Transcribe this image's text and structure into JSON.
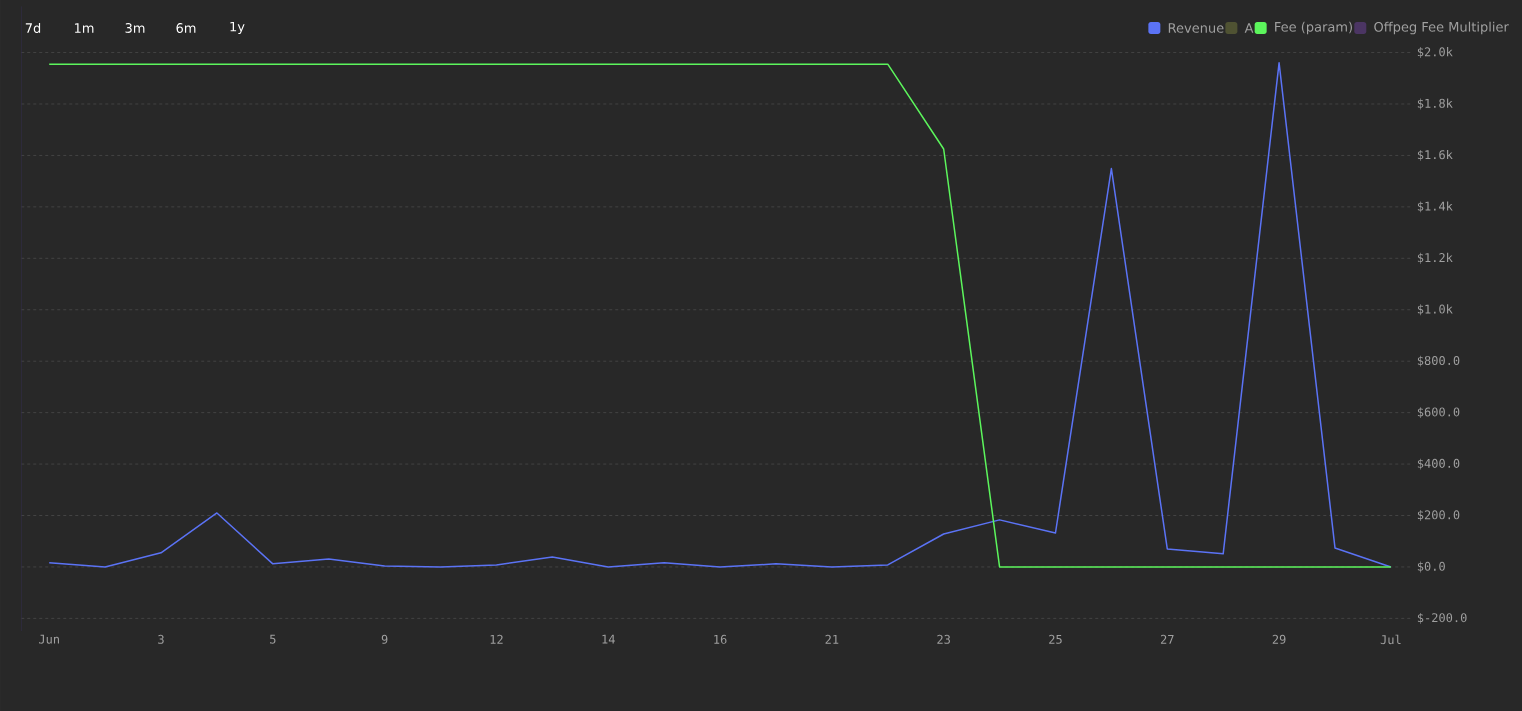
{
  "chart_data": {
    "type": "line",
    "categories": [
      "Jun",
      null,
      "3",
      null,
      "5",
      null,
      "9",
      null,
      "12",
      null,
      "14",
      null,
      "16",
      null,
      "21",
      null,
      "23",
      null,
      "25",
      null,
      "27",
      null,
      "29",
      null,
      "Jul"
    ],
    "series": [
      {
        "name": "Revenue",
        "color": "#5b73f5",
        "values": [
          16,
          0,
          55,
          210,
          12,
          31,
          4,
          0,
          8,
          39,
          0,
          16,
          0,
          12,
          0,
          8,
          128,
          183,
          132,
          1549,
          70,
          51,
          1960,
          74,
          0
        ]
      },
      {
        "name": "A",
        "color": "#4f5232",
        "values": [
          null,
          null,
          null,
          null,
          null,
          null,
          null,
          null,
          null,
          null,
          null,
          null,
          null,
          null,
          null,
          null,
          null,
          null,
          null,
          null,
          null,
          null,
          null,
          null,
          null
        ]
      },
      {
        "name": "Fee (param)",
        "color": "#5cf55c",
        "values": [
          1955,
          1955,
          1955,
          1955,
          1955,
          1955,
          1955,
          1955,
          1955,
          1955,
          1955,
          1955,
          1955,
          1955,
          1955,
          1955,
          1625,
          0,
          0,
          0,
          0,
          0,
          0,
          0,
          0
        ]
      },
      {
        "name": "Offpeg Fee Multiplier",
        "color": "#4b3563",
        "values": [
          null,
          null,
          null,
          null,
          null,
          null,
          null,
          null,
          null,
          null,
          null,
          null,
          null,
          null,
          null,
          null,
          null,
          null,
          null,
          null,
          null,
          null,
          null,
          null,
          null
        ]
      }
    ],
    "ylim": [
      -250,
      2180
    ],
    "yticks": [
      {
        "value": -200,
        "label": "$-200.0"
      },
      {
        "value": 0,
        "label": "$0.0"
      },
      {
        "value": 200,
        "label": "$200.0"
      },
      {
        "value": 400,
        "label": "$400.0"
      },
      {
        "value": 600,
        "label": "$600.0"
      },
      {
        "value": 800,
        "label": "$800.0"
      },
      {
        "value": 1000,
        "label": "$1.0k"
      },
      {
        "value": 1200,
        "label": "$1.2k"
      },
      {
        "value": 1400,
        "label": "$1.4k"
      },
      {
        "value": 1600,
        "label": "$1.6k"
      },
      {
        "value": 1800,
        "label": "$1.8k"
      },
      {
        "value": 2000,
        "label": "$2.0k"
      }
    ],
    "grid": "y",
    "legend": "top right",
    "marker": "none",
    "line_style": "solid",
    "annotations": [
      "7d",
      "1m",
      "3m",
      "6m",
      "1y"
    ]
  }
}
